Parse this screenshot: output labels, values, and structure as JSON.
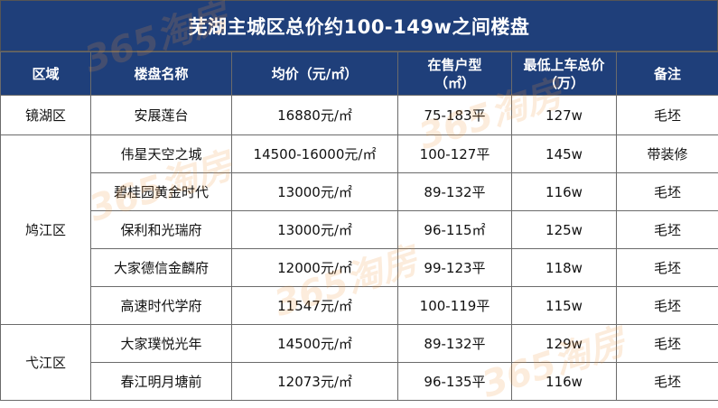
{
  "title": "芜湖主城区总价约100-149w之间楼盘",
  "headers": {
    "district": "区域",
    "name": "楼盘名称",
    "price": "均价（元/㎡）",
    "type_line1": "在售户型",
    "type_line2": "（㎡）",
    "total_line1": "最低上车总价",
    "total_line2": "（万）",
    "note": "备注"
  },
  "districts": [
    "镜湖区",
    "鸠江区",
    "弋江区"
  ],
  "rows": [
    {
      "name": "安展莲台",
      "price": "16880元/㎡",
      "type": "75-183平",
      "total": "127w",
      "note": "毛坯"
    },
    {
      "name": "伟星天空之城",
      "price": "14500-16000元/㎡",
      "type": "100-127平",
      "total": "145w",
      "note": "带装修"
    },
    {
      "name": "碧桂园黄金时代",
      "price": "13000元/㎡",
      "type": "89-132平",
      "total": "116w",
      "note": "毛坯"
    },
    {
      "name": "保利和光瑞府",
      "price": "13000元/㎡",
      "type": "96-115㎡",
      "total": "125w",
      "note": "毛坯"
    },
    {
      "name": "大家德信金麟府",
      "price": "12000元/㎡",
      "type": "99-123平",
      "total": "118w",
      "note": "毛坯"
    },
    {
      "name": "高速时代学府",
      "price": "11547元/㎡",
      "type": "100-119平",
      "total": "115w",
      "note": "毛坯"
    },
    {
      "name": "大家璞悦光年",
      "price": "14500元/㎡",
      "type": "89-132平",
      "total": "129w",
      "note": "毛坯"
    },
    {
      "name": "春江明月塘前",
      "price": "12073元/㎡",
      "type": "96-135平",
      "total": "116w",
      "note": "毛坯"
    }
  ],
  "watermark": "365淘房"
}
